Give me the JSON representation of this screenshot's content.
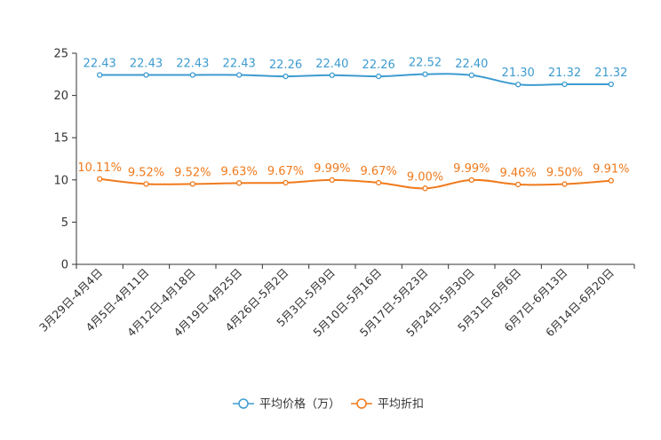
{
  "chart_data": {
    "type": "line",
    "categories": [
      "3月29日-4月4日",
      "4月5日-4月11日",
      "4月12日-4月18日",
      "4月19日-4月25日",
      "4月26日-5月2日",
      "5月3日-5月9日",
      "5月10日-5月16日",
      "5月17日-5月23日",
      "5月24日-5月30日",
      "5月31日-6月6日",
      "6月7日-6月13日",
      "6月14日-6月20日"
    ],
    "series": [
      {
        "name": "平均价格（万）",
        "color": "#3d9bd0",
        "values": [
          22.43,
          22.43,
          22.43,
          22.43,
          22.26,
          22.4,
          22.26,
          22.52,
          22.4,
          21.3,
          21.32,
          21.32
        ],
        "labels": [
          "22.43",
          "22.43",
          "22.43",
          "22.43",
          "22.26",
          "22.40",
          "22.26",
          "22.52",
          "22.40",
          "21.30",
          "21.32",
          "21.32"
        ]
      },
      {
        "name": "平均折扣",
        "color": "#f07a1c",
        "values": [
          10.11,
          9.52,
          9.52,
          9.63,
          9.67,
          9.99,
          9.67,
          9.0,
          9.99,
          9.46,
          9.5,
          9.91
        ],
        "labels": [
          "10.11%",
          "9.52%",
          "9.52%",
          "9.63%",
          "9.67%",
          "9.99%",
          "9.67%",
          "9.00%",
          "9.99%",
          "9.46%",
          "9.50%",
          "9.91%"
        ]
      }
    ],
    "ylim": [
      0,
      25
    ],
    "yticks": [
      "0",
      "5",
      "10",
      "15",
      "20",
      "25"
    ],
    "ytick_values": [
      0,
      5,
      10,
      15,
      20,
      25
    ],
    "legend_position": "bottom-center",
    "grid": false
  }
}
